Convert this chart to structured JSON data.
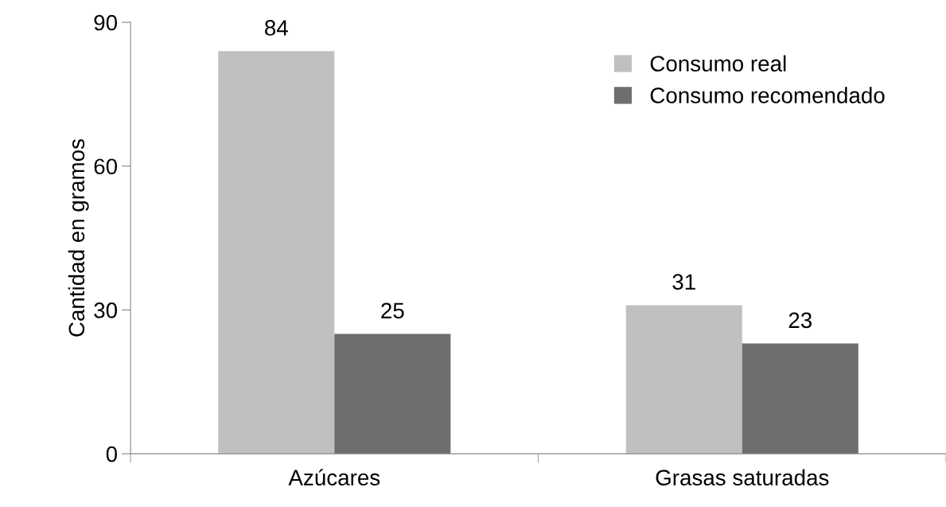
{
  "chart_data": {
    "type": "bar",
    "ylabel": "Cantidad en gramos",
    "categories": [
      "Azúcares",
      "Grasas saturadas"
    ],
    "series": [
      {
        "name": "Consumo real",
        "color": "#c0c0c0",
        "values": [
          84,
          31
        ]
      },
      {
        "name": "Consumo recomendado",
        "color": "#6e6e6e",
        "values": [
          25,
          23
        ]
      }
    ],
    "ylim": [
      0,
      90
    ],
    "yticks": [
      0,
      30,
      60,
      90
    ],
    "grid": false,
    "legend": "top right",
    "data_labels": true
  }
}
